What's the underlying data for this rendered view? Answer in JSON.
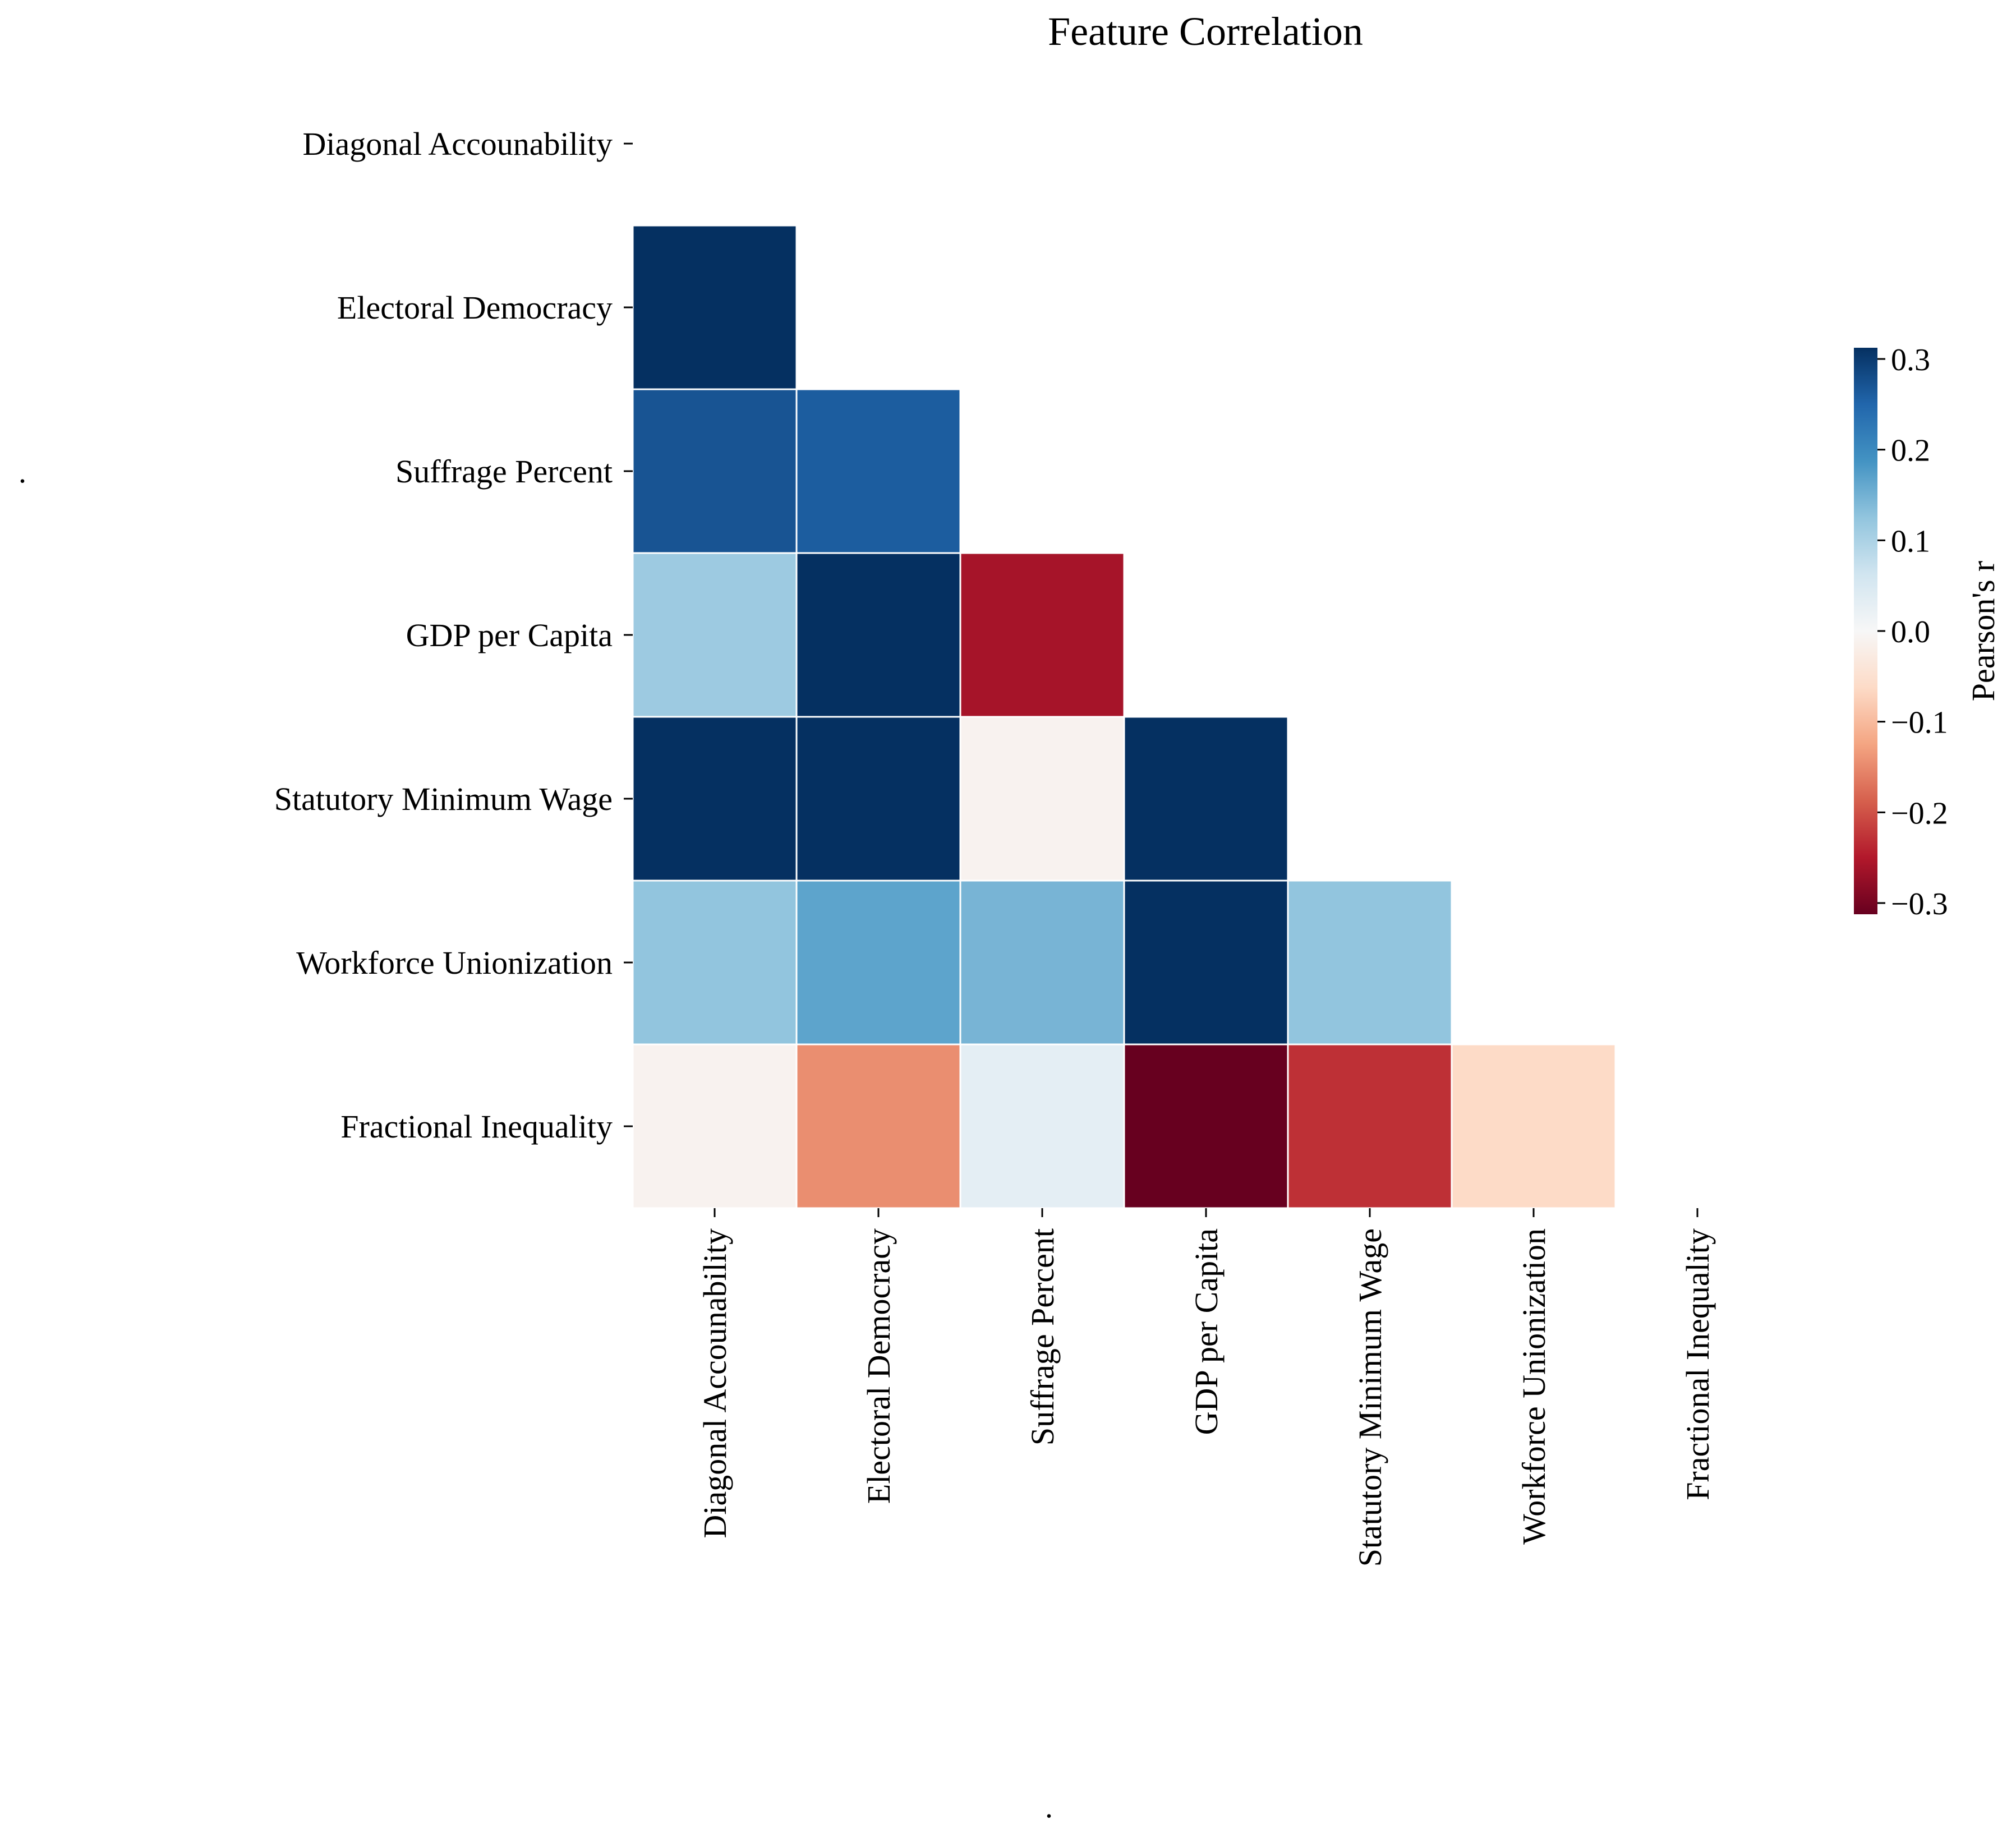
{
  "chart_data": {
    "type": "heatmap",
    "title": "Feature Correlation",
    "xlabel": ".",
    "ylabel": ".",
    "labels": [
      "Diagonal Accounability",
      "Electoral Democracy",
      "Suffrage Percent",
      "GDP per Capita",
      "Statutory Minimum Wage",
      "Workforce Unionization",
      "Fractional Inequality"
    ],
    "mask": "upper-triangle-including-diagonal",
    "values": [
      [
        null,
        null,
        null,
        null,
        null,
        null,
        null
      ],
      [
        0.31,
        null,
        null,
        null,
        null,
        null,
        null
      ],
      [
        0.26,
        0.25,
        null,
        null,
        null,
        null,
        null
      ],
      [
        0.11,
        0.32,
        -0.25,
        null,
        null,
        null,
        null
      ],
      [
        0.33,
        0.33,
        -0.01,
        0.32,
        null,
        null,
        null
      ],
      [
        0.12,
        0.16,
        0.14,
        0.32,
        0.12,
        null,
        null
      ],
      [
        -0.01,
        -0.14,
        0.03,
        -0.31,
        -0.22,
        -0.06,
        null
      ]
    ],
    "colorbar": {
      "label": "Pearson's r",
      "vmin": -0.3,
      "vmax": 0.3,
      "ticks": [
        "0.3",
        "0.2",
        "0.1",
        "0.0",
        "−0.1",
        "−0.2",
        "−0.3"
      ],
      "colormap": "RdBu"
    }
  }
}
